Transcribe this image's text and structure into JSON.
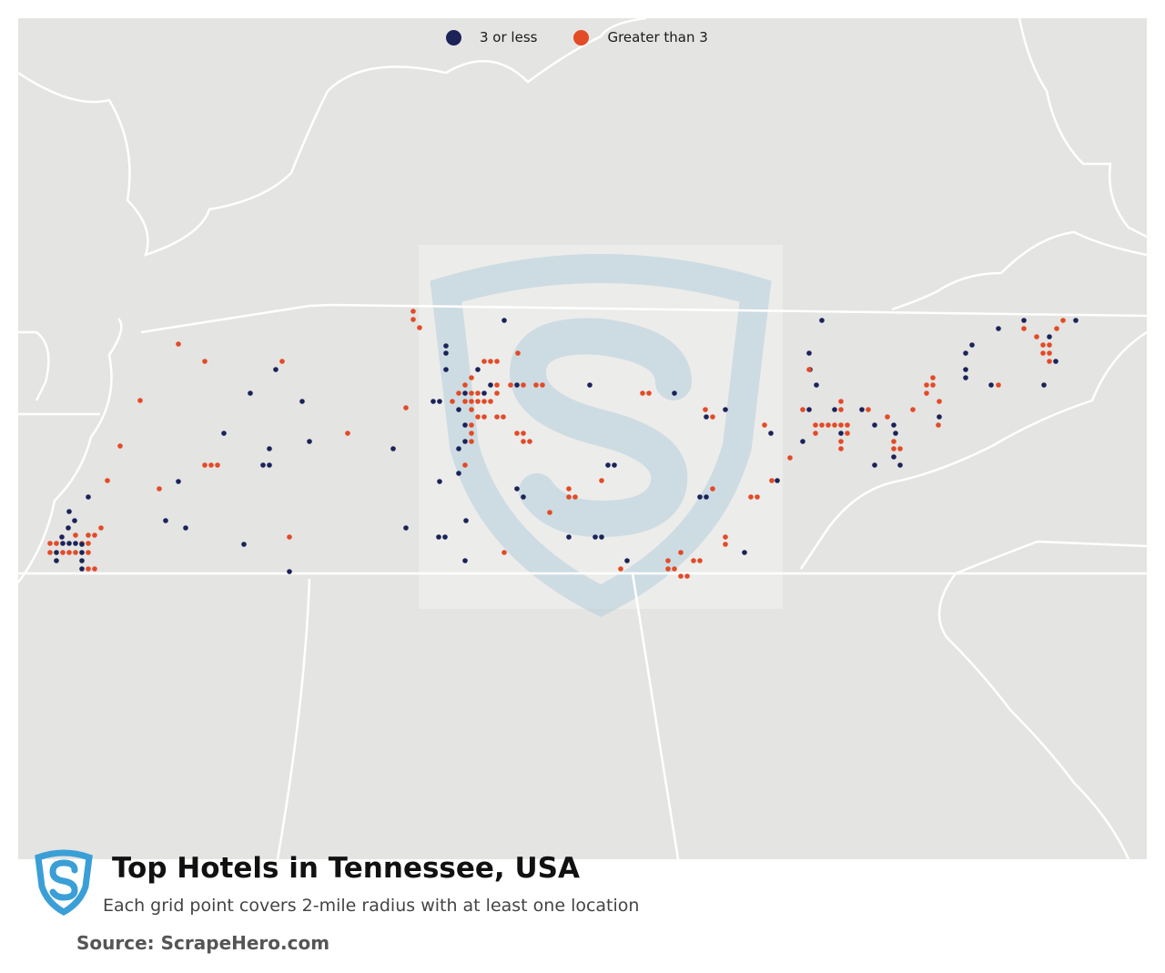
{
  "legend": {
    "items": [
      {
        "label": "3 or less",
        "color": "#1b2359"
      },
      {
        "label": "Greater than 3",
        "color": "#e34a26"
      }
    ]
  },
  "title": "Top Hotels in Tennessee, USA",
  "subtitle": "Each grid point covers 2-mile radius with at least one location",
  "source": "Source: ScrapeHero.com",
  "colors": {
    "map_bg": "#e4e4e2",
    "border": "#ffffff",
    "watermark": "#b8cfdd",
    "logo": "#3a9fd6"
  }
}
